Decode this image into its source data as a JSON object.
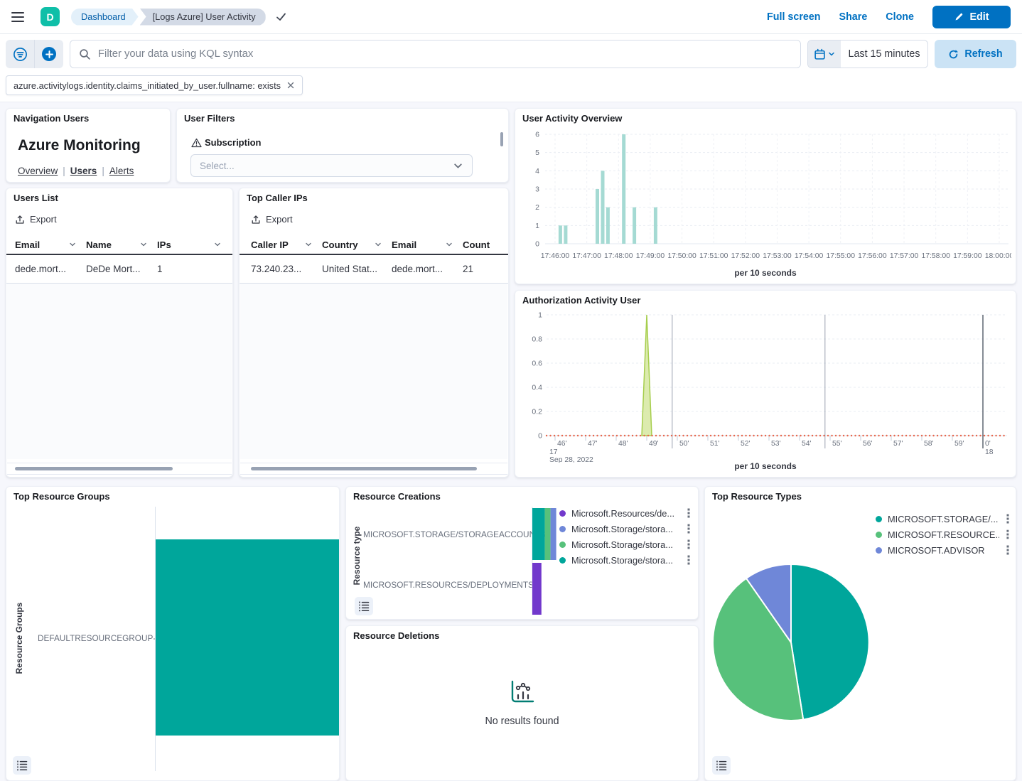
{
  "colors": {
    "accent_blue": "#0071C2",
    "logo_teal": "#0FBFA8",
    "series_teal": "#00A69B",
    "series_green": "#57C17B",
    "series_periwinkle": "#6F87D8",
    "series_purple": "#7239CC",
    "histogram_teal": "#A5DAD3",
    "baseline_orange": "#E7664C",
    "spike_green_fill": "#D6E8A0",
    "spike_green_stroke": "#A6CE4D"
  },
  "chrome": {
    "logo_letter": "D",
    "breadcrumbs": [
      {
        "label": "Dashboard"
      },
      {
        "label": "[Logs Azure] User Activity"
      }
    ],
    "actions": {
      "full_screen": "Full screen",
      "share": "Share",
      "clone": "Clone",
      "edit": "Edit"
    }
  },
  "query_bar": {
    "placeholder": "Filter your data using KQL syntax",
    "time_range": "Last 15 minutes",
    "refresh_label": "Refresh",
    "filter_pill": "azure.activitylogs.identity.claims_initiated_by_user.fullname: exists"
  },
  "panels": {
    "navigation": {
      "title": "Navigation Users",
      "heading": "Azure Monitoring",
      "links": [
        "Overview",
        "Users",
        "Alerts"
      ],
      "active_link": "Users"
    },
    "user_filters": {
      "title": "User Filters",
      "field_label": "Subscription",
      "select_placeholder": "Select..."
    },
    "user_activity_overview": {
      "title": "User Activity Overview",
      "xlabel": "per 10 seconds"
    },
    "users_list": {
      "title": "Users List",
      "export_label": "Export",
      "columns": [
        "Email",
        "Name",
        "IPs"
      ],
      "rows": [
        [
          "dede.mort...",
          "DeDe Mort...",
          "1"
        ]
      ]
    },
    "top_caller_ips": {
      "title": "Top Caller IPs",
      "export_label": "Export",
      "columns": [
        "Caller IP",
        "Country",
        "Email",
        "Count"
      ],
      "rows": [
        [
          "73.240.23...",
          "United Stat...",
          "dede.mort...",
          "21"
        ]
      ]
    },
    "authorization_activity": {
      "title": "Authorization Activity User",
      "xlabel": "per 10 seconds"
    },
    "top_resource_groups": {
      "title": "Top Resource Groups",
      "ylabel": "Resource Groups",
      "category": "DEFAULTRESOURCEGROUP-WEU"
    },
    "resource_creations": {
      "title": "Resource Creations",
      "ylabel": "Resource type"
    },
    "resource_deletions": {
      "title": "Resource Deletions",
      "empty_message": "No results found"
    },
    "top_resource_types": {
      "title": "Top Resource Types"
    }
  },
  "chart_data": [
    {
      "id": "user_activity_overview",
      "type": "bar",
      "title": "User Activity Overview",
      "xlabel": "per 10 seconds",
      "ylim": [
        0,
        6
      ],
      "y_ticks": [
        0,
        1,
        2,
        3,
        4,
        5,
        6
      ],
      "x_ticks": [
        "17:46:00",
        "17:47:00",
        "17:48:00",
        "17:49:00",
        "17:50:00",
        "17:51:00",
        "17:52:00",
        "17:53:00",
        "17:54:00",
        "17:55:00",
        "17:56:00",
        "17:57:00",
        "17:58:00",
        "17:59:00",
        "18:00:00"
      ],
      "bar_color": "#A5DAD3",
      "buckets": [
        {
          "time": "17:46:10",
          "count": 1
        },
        {
          "time": "17:46:20",
          "count": 1
        },
        {
          "time": "17:47:20",
          "count": 3
        },
        {
          "time": "17:47:30",
          "count": 4
        },
        {
          "time": "17:47:40",
          "count": 2
        },
        {
          "time": "17:48:10",
          "count": 6
        },
        {
          "time": "17:48:30",
          "count": 2
        },
        {
          "time": "17:49:10",
          "count": 2
        }
      ]
    },
    {
      "id": "authorization_activity_user",
      "type": "area",
      "title": "Authorization Activity User",
      "xlabel": "per 10 seconds",
      "ylim": [
        0,
        1
      ],
      "y_ticks": [
        0,
        0.2,
        0.4,
        0.6,
        0.8,
        1
      ],
      "x_ticks": [
        "46'",
        "47'",
        "48'",
        "49'",
        "50'",
        "51'",
        "52'",
        "53'",
        "54'",
        "55'",
        "56'",
        "57'",
        "58'",
        "59'",
        "0'"
      ],
      "x_hour_start": "17",
      "x_hour_end": "18",
      "date_label": "Sep 28, 2022",
      "baseline_series": {
        "value": 0,
        "color": "#E7664C",
        "style": "dotted"
      },
      "spike": {
        "time": "17:49:00",
        "value": 1,
        "fill": "#D6E8A0",
        "stroke": "#A6CE4D"
      },
      "vertical_guides": [
        {
          "time": "17:49:50",
          "shade": "light"
        },
        {
          "time": "17:54:50",
          "shade": "light"
        },
        {
          "time": "18:00:00",
          "shade": "dark"
        }
      ]
    },
    {
      "id": "top_resource_groups",
      "type": "bar",
      "orientation": "horizontal",
      "ylabel": "Resource Groups",
      "categories": [
        "DEFAULTRESOURCEGROUP-WEU"
      ],
      "values": [
        1
      ],
      "color": "#00A69B",
      "note": "single bar spans full plot width, clipped by panel edge"
    },
    {
      "id": "resource_creations",
      "type": "bar",
      "orientation": "horizontal",
      "stacked": true,
      "ylabel": "Resource type",
      "categories": [
        "MICROSOFT.STORAGE/STORAGEACCOUNTS",
        "MICROSOFT.RESOURCES/DEPLOYMENTS"
      ],
      "series": [
        {
          "name": "Microsoft.Resources/de...",
          "color": "#7239CC",
          "values": [
            0,
            1.6
          ]
        },
        {
          "name": "Microsoft.Storage/stora...",
          "color": "#6F87D8",
          "values": [
            1,
            0
          ]
        },
        {
          "name": "Microsoft.Storage/stora...",
          "color": "#57C17B",
          "values": [
            1,
            0
          ]
        },
        {
          "name": "Microsoft.Storage/stora...",
          "color": "#00A69B",
          "values": [
            2.2,
            0
          ]
        }
      ]
    },
    {
      "id": "top_resource_types",
      "type": "pie",
      "labels": [
        "MICROSOFT.STORAGE/...",
        "MICROSOFT.RESOURCE...",
        "MICROSOFT.ADVISOR"
      ],
      "values": [
        47.5,
        42.8,
        9.7
      ],
      "colors": [
        "#00A69B",
        "#57C17B",
        "#6F87D8"
      ]
    }
  ]
}
